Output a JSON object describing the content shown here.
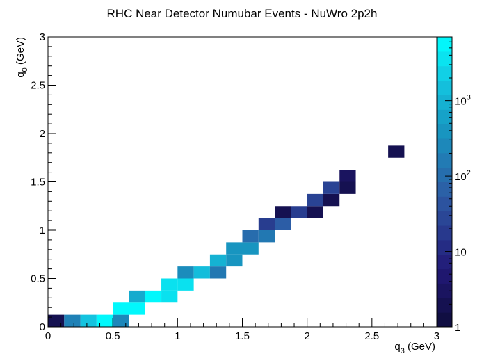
{
  "chart_data": {
    "type": "heatmap",
    "title": "RHC Near Detector Numubar Events - NuWro 2p2h",
    "xlabel": {
      "main": "q",
      "sub": "3",
      "unit": " (GeV)"
    },
    "ylabel": {
      "main": "q",
      "sub": "0",
      "unit": " (GeV)"
    },
    "xlim": [
      0,
      3
    ],
    "ylim": [
      0,
      3
    ],
    "bin_width": 0.125,
    "x_ticks": [
      {
        "value": 0,
        "label": "0"
      },
      {
        "value": 0.5,
        "label": "0.5"
      },
      {
        "value": 1,
        "label": "1"
      },
      {
        "value": 1.5,
        "label": "1.5"
      },
      {
        "value": 2,
        "label": "2"
      },
      {
        "value": 2.5,
        "label": "2.5"
      },
      {
        "value": 3,
        "label": "3"
      }
    ],
    "y_ticks": [
      {
        "value": 0,
        "label": "0"
      },
      {
        "value": 0.5,
        "label": "0.5"
      },
      {
        "value": 1,
        "label": "1"
      },
      {
        "value": 1.5,
        "label": "1.5"
      },
      {
        "value": 2,
        "label": "2"
      },
      {
        "value": 2.5,
        "label": "2.5"
      },
      {
        "value": 3,
        "label": "3"
      }
    ],
    "z_scale": "log",
    "zlim": [
      1,
      7000
    ],
    "z_ticks": [
      {
        "value": 1,
        "label": "1"
      },
      {
        "value": 10,
        "label": "10"
      },
      {
        "value": 100,
        "label": "10",
        "exp": "2"
      },
      {
        "value": 1000,
        "label": "10",
        "exp": "3"
      }
    ],
    "colormap": "ROOT kBird-like (dark navy to cyan)",
    "bins": [
      {
        "x": 0.0625,
        "y": 0.0625,
        "z": 2
      },
      {
        "x": 0.1875,
        "y": 0.0625,
        "z": 200
      },
      {
        "x": 0.3125,
        "y": 0.0625,
        "z": 1700
      },
      {
        "x": 0.4375,
        "y": 0.0625,
        "z": 6000
      },
      {
        "x": 0.5625,
        "y": 0.0625,
        "z": 250
      },
      {
        "x": 0.5625,
        "y": 0.1875,
        "z": 6000
      },
      {
        "x": 0.6875,
        "y": 0.1875,
        "z": 6000
      },
      {
        "x": 0.6875,
        "y": 0.3125,
        "z": 800
      },
      {
        "x": 0.8125,
        "y": 0.3125,
        "z": 6000
      },
      {
        "x": 0.9375,
        "y": 0.3125,
        "z": 3500
      },
      {
        "x": 0.9375,
        "y": 0.4375,
        "z": 3500
      },
      {
        "x": 1.0625,
        "y": 0.4375,
        "z": 3500
      },
      {
        "x": 1.0625,
        "y": 0.5625,
        "z": 300
      },
      {
        "x": 1.1875,
        "y": 0.5625,
        "z": 1400
      },
      {
        "x": 1.3125,
        "y": 0.5625,
        "z": 150
      },
      {
        "x": 1.3125,
        "y": 0.6875,
        "z": 1000
      },
      {
        "x": 1.4375,
        "y": 0.6875,
        "z": 400
      },
      {
        "x": 1.4375,
        "y": 0.8125,
        "z": 400
      },
      {
        "x": 1.5625,
        "y": 0.8125,
        "z": 400
      },
      {
        "x": 1.5625,
        "y": 0.9375,
        "z": 100
      },
      {
        "x": 1.6875,
        "y": 0.9375,
        "z": 150
      },
      {
        "x": 1.6875,
        "y": 1.0625,
        "z": 20
      },
      {
        "x": 1.8125,
        "y": 1.0625,
        "z": 60
      },
      {
        "x": 1.8125,
        "y": 1.1875,
        "z": 2
      },
      {
        "x": 1.9375,
        "y": 1.1875,
        "z": 20
      },
      {
        "x": 2.0625,
        "y": 1.1875,
        "z": 2
      },
      {
        "x": 2.0625,
        "y": 1.3125,
        "z": 25
      },
      {
        "x": 2.1875,
        "y": 1.3125,
        "z": 2
      },
      {
        "x": 2.1875,
        "y": 1.4375,
        "z": 25
      },
      {
        "x": 2.3125,
        "y": 1.4375,
        "z": 2
      },
      {
        "x": 2.3125,
        "y": 1.5625,
        "z": 3
      },
      {
        "x": 2.6875,
        "y": 1.8125,
        "z": 2
      }
    ]
  }
}
